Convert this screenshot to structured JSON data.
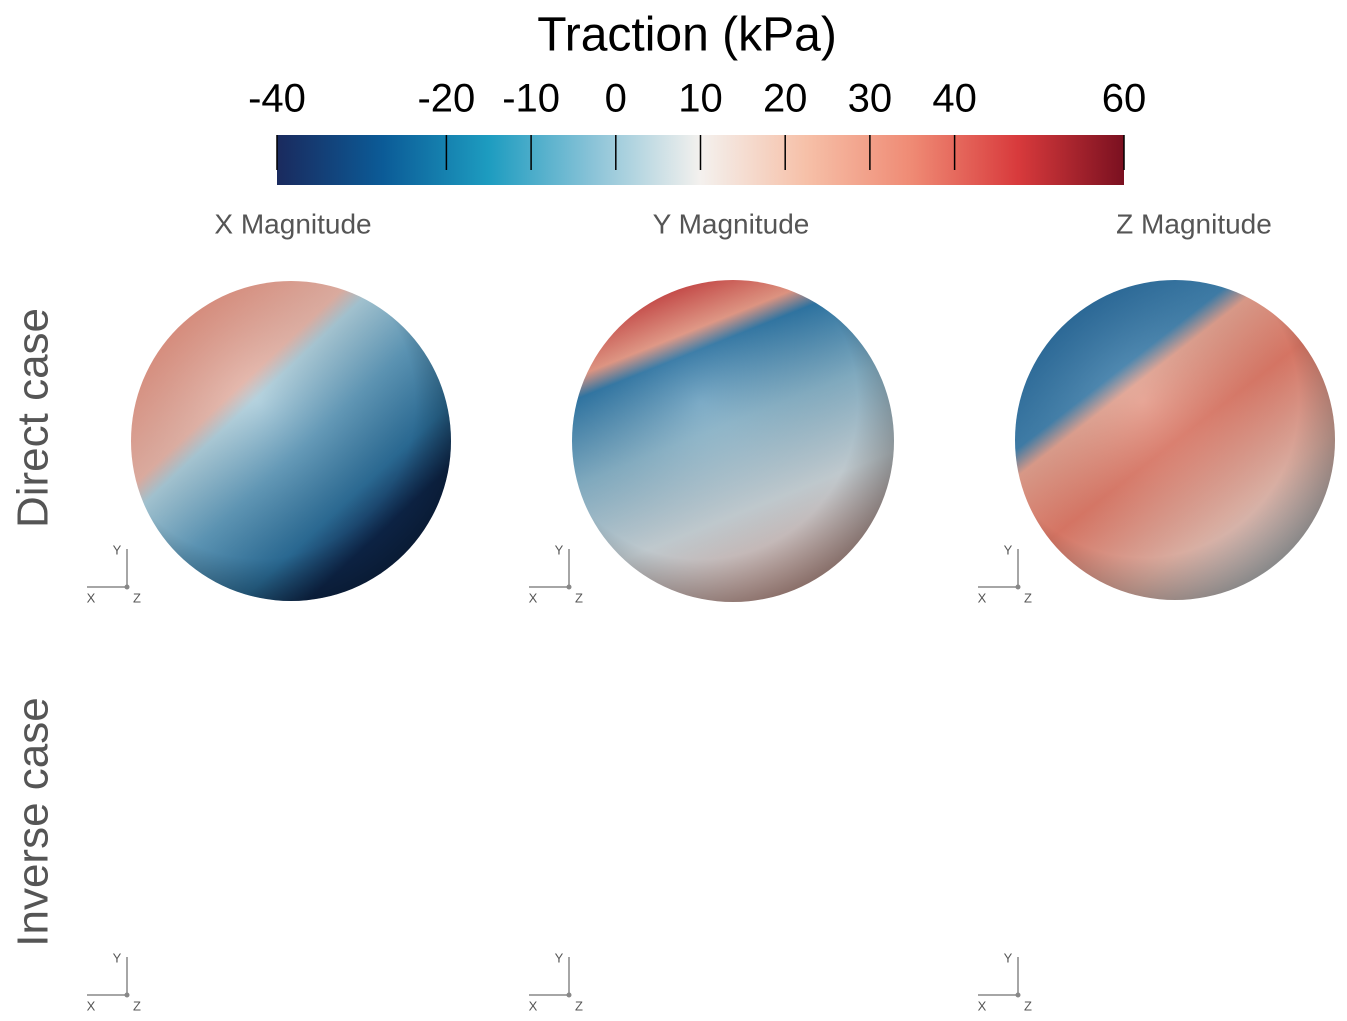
{
  "figure": {
    "colorbar": {
      "title": "Traction (kPa)",
      "lim": [
        -40,
        60
      ],
      "ticks": [
        -40,
        -20,
        -10,
        0,
        10,
        20,
        30,
        40,
        60
      ],
      "colormap": [
        "#1a2a5e",
        "#0b5b97",
        "#1d9cc0",
        "#8cc4d8",
        "#f4f1ee",
        "#f6c0a8",
        "#ef8a74",
        "#d83a3c",
        "#7a1020"
      ]
    },
    "columns": [
      "X Magnitude",
      "Y Magnitude",
      "Z Magnitude"
    ],
    "rows": [
      "Direct case",
      "Inverse case"
    ],
    "axes_labels": {
      "x": "X",
      "y": "Y",
      "z": "Z"
    }
  }
}
